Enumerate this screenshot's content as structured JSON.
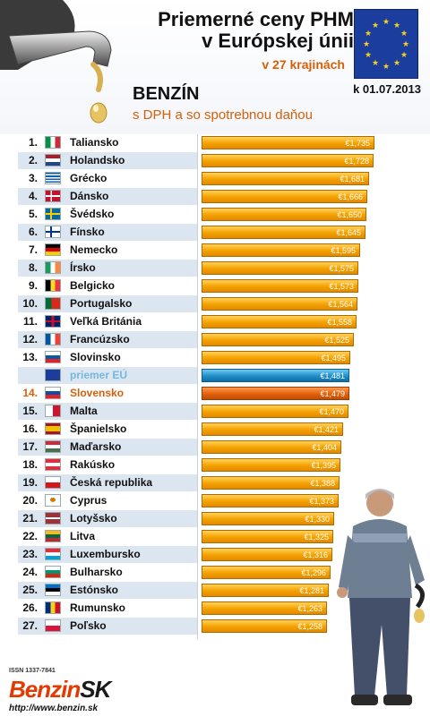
{
  "header": {
    "title_line1": "Priemerné ceny PHM",
    "title_line2": "v Európskej únii",
    "subtitle": "v 27 krajinách",
    "date": "k 01.07.2013",
    "fuel": "BENZÍN",
    "fuel_sub": "s DPH a so spotrebnou daňou"
  },
  "colors": {
    "bar": "#f5a000",
    "eu_bar": "#1f8fc8",
    "sk_bar": "#e0610c",
    "accent": "#d4600a"
  },
  "chart_data": {
    "type": "bar",
    "orientation": "horizontal",
    "title": "Priemerné ceny PHM v Európskej únii",
    "subtitle": "v 27 krajinách",
    "date": "k 01.07.2013",
    "xlim": [
      0,
      1.735
    ],
    "rows": [
      {
        "rank": "1.",
        "country": "Taliansko",
        "flag": "flag-italy",
        "value": 1.735,
        "label": "€1,735"
      },
      {
        "rank": "2.",
        "country": "Holandsko",
        "flag": "flag-netherlands",
        "value": 1.728,
        "label": "€1,728"
      },
      {
        "rank": "3.",
        "country": "Grécko",
        "flag": "flag-greece",
        "value": 1.681,
        "label": "€1,681"
      },
      {
        "rank": "4.",
        "country": "Dánsko",
        "flag": "flag-denmark",
        "value": 1.666,
        "label": "€1,666"
      },
      {
        "rank": "5.",
        "country": "Švédsko",
        "flag": "flag-sweden",
        "value": 1.65,
        "label": "€1,650"
      },
      {
        "rank": "6.",
        "country": "Fínsko",
        "flag": "flag-finland",
        "value": 1.645,
        "label": "€1,645"
      },
      {
        "rank": "7.",
        "country": "Nemecko",
        "flag": "flag-germany",
        "value": 1.595,
        "label": "€1,595"
      },
      {
        "rank": "8.",
        "country": "Írsko",
        "flag": "flag-ireland",
        "value": 1.575,
        "label": "€1,575"
      },
      {
        "rank": "9.",
        "country": "Belgicko",
        "flag": "flag-belgium",
        "value": 1.573,
        "label": "€1,573"
      },
      {
        "rank": "10.",
        "country": "Portugalsko",
        "flag": "flag-portugal",
        "value": 1.564,
        "label": "€1,564"
      },
      {
        "rank": "11.",
        "country": "Veľká Británia",
        "flag": "flag-uk",
        "value": 1.558,
        "label": "€1,558"
      },
      {
        "rank": "12.",
        "country": "Francúzsko",
        "flag": "flag-france",
        "value": 1.525,
        "label": "€1,525"
      },
      {
        "rank": "13.",
        "country": "Slovinsko",
        "flag": "flag-slovenia",
        "value": 1.495,
        "label": "€1,495"
      },
      {
        "rank": "",
        "country": "priemer EÚ",
        "flag": "flag-eu",
        "value": 1.481,
        "label": "€1,481",
        "kind": "eu"
      },
      {
        "rank": "14.",
        "country": "Slovensko",
        "flag": "flag-slovakia",
        "value": 1.479,
        "label": "€1,479",
        "kind": "sk"
      },
      {
        "rank": "15.",
        "country": "Malta",
        "flag": "flag-malta",
        "value": 1.47,
        "label": "€1,470"
      },
      {
        "rank": "16.",
        "country": "Španielsko",
        "flag": "flag-spain",
        "value": 1.421,
        "label": "€1,421"
      },
      {
        "rank": "17.",
        "country": "Maďarsko",
        "flag": "flag-hungary",
        "value": 1.404,
        "label": "€1,404"
      },
      {
        "rank": "18.",
        "country": "Rakúsko",
        "flag": "flag-austria",
        "value": 1.395,
        "label": "€1,395"
      },
      {
        "rank": "19.",
        "country": "Česká republika",
        "flag": "flag-czechia",
        "value": 1.388,
        "label": "€1,388"
      },
      {
        "rank": "20.",
        "country": "Cyprus",
        "flag": "flag-cyprus",
        "value": 1.373,
        "label": "€1,373"
      },
      {
        "rank": "21.",
        "country": "Lotyšsko",
        "flag": "flag-latvia",
        "value": 1.33,
        "label": "€1,330"
      },
      {
        "rank": "22.",
        "country": "Litva",
        "flag": "flag-lithuania",
        "value": 1.325,
        "label": "€1,325"
      },
      {
        "rank": "23.",
        "country": "Luxembursko",
        "flag": "flag-luxembourg",
        "value": 1.316,
        "label": "€1,316"
      },
      {
        "rank": "24.",
        "country": "Bulharsko",
        "flag": "flag-bulgaria",
        "value": 1.296,
        "label": "€1,296"
      },
      {
        "rank": "25.",
        "country": "Estónsko",
        "flag": "flag-estonia",
        "value": 1.281,
        "label": "€1,281"
      },
      {
        "rank": "26.",
        "country": "Rumunsko",
        "flag": "flag-romania",
        "value": 1.263,
        "label": "€1,263"
      },
      {
        "rank": "27.",
        "country": "Poľsko",
        "flag": "flag-poland",
        "value": 1.258,
        "label": "€1,258"
      }
    ]
  },
  "footer": {
    "issn": "ISSN 1337-7841",
    "logo_main": "Benzin",
    "logo_suffix": "SK",
    "url": "http://www.benzin.sk"
  }
}
